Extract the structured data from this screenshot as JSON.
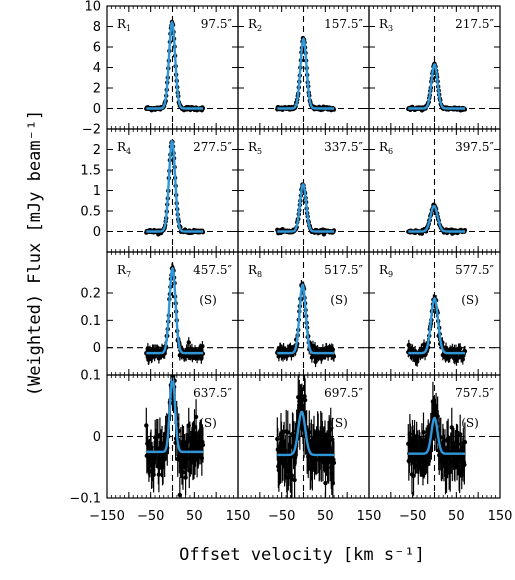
{
  "chart_data": {
    "type": "line",
    "grid": false,
    "xlabel": "Offset velocity [km s⁻¹]",
    "ylabel": "(Weighted) Flux [mJy beam⁻¹]",
    "xlim": [
      -150,
      150
    ],
    "x_ticks": [
      "−150",
      "−50",
      "50",
      "150"
    ],
    "x_tick_values": [
      -150,
      -50,
      50,
      150
    ],
    "colors": {
      "model": "#2f97d8",
      "data": "#000000",
      "frame": "#000000"
    },
    "rows": [
      {
        "ylim": [
          -2,
          10
        ],
        "y_ticks": [
          {
            "v": 10,
            "t": "10"
          },
          {
            "v": 8,
            "t": "8"
          },
          {
            "v": 6,
            "t": "6"
          },
          {
            "v": 4,
            "t": "4"
          },
          {
            "v": 2,
            "t": "2"
          },
          {
            "v": 0,
            "t": "0"
          },
          {
            "v": -2,
            "t": "−2"
          }
        ]
      },
      {
        "ylim": [
          -0.5,
          2.5
        ],
        "y_ticks": [
          {
            "v": 2,
            "t": "2"
          },
          {
            "v": 1.5,
            "t": "1.5"
          },
          {
            "v": 1,
            "t": "1"
          },
          {
            "v": 0.5,
            "t": "0.5"
          },
          {
            "v": 0,
            "t": "0"
          }
        ]
      },
      {
        "ylim": [
          -0.1,
          0.35
        ],
        "y_ticks": [
          {
            "v": 0.2,
            "t": "0.2"
          },
          {
            "v": 0.1,
            "t": "0.1"
          },
          {
            "v": 0,
            "t": "0"
          }
        ]
      },
      {
        "ylim": [
          -0.1,
          0.1
        ],
        "y_ticks": [
          {
            "v": 0.1,
            "t": "0.1"
          },
          {
            "v": 0,
            "t": "0"
          },
          {
            "v": -0.1,
            "t": "−0.1"
          }
        ]
      }
    ],
    "panels": [
      {
        "label": "R",
        "sub": "1",
        "offset": "97.5″",
        "flag": "",
        "amp": 8.4,
        "center": -1,
        "sigma": 7,
        "baseline": 0,
        "noise": 0.08,
        "xrange": [
          -60,
          70
        ]
      },
      {
        "label": "R",
        "sub": "2",
        "offset": "157.5″",
        "flag": "",
        "amp": 6.8,
        "center": 0,
        "sigma": 7,
        "baseline": 0,
        "noise": 0.08,
        "xrange": [
          -60,
          70
        ]
      },
      {
        "label": "R",
        "sub": "3",
        "offset": "217.5″",
        "flag": "",
        "amp": 4.3,
        "center": 0,
        "sigma": 7,
        "baseline": 0,
        "noise": 0.08,
        "xrange": [
          -60,
          70
        ]
      },
      {
        "label": "R",
        "sub": "4",
        "offset": "277.5″",
        "flag": "",
        "amp": 2.2,
        "center": -1,
        "sigma": 7,
        "baseline": 0,
        "noise": 0.02,
        "xrange": [
          -60,
          70
        ]
      },
      {
        "label": "R",
        "sub": "5",
        "offset": "337.5″",
        "flag": "",
        "amp": 1.15,
        "center": -1,
        "sigma": 7,
        "baseline": 0,
        "noise": 0.02,
        "xrange": [
          -60,
          70
        ]
      },
      {
        "label": "R",
        "sub": "6",
        "offset": "397.5″",
        "flag": "",
        "amp": 0.62,
        "center": -1,
        "sigma": 8,
        "baseline": 0,
        "noise": 0.02,
        "xrange": [
          -60,
          70
        ]
      },
      {
        "label": "R",
        "sub": "7",
        "offset": "457.5″",
        "flag": "(S)",
        "amp": 0.31,
        "center": 0,
        "sigma": 7,
        "baseline": -0.02,
        "noise": 0.012,
        "xrange": [
          -60,
          70
        ]
      },
      {
        "label": "R",
        "sub": "8",
        "offset": "517.5″",
        "flag": "(S)",
        "amp": 0.25,
        "center": -2,
        "sigma": 7,
        "baseline": -0.02,
        "noise": 0.012,
        "xrange": [
          -60,
          70
        ]
      },
      {
        "label": "R",
        "sub": "9",
        "offset": "577.5″",
        "flag": "(S)",
        "amp": 0.2,
        "center": 0,
        "sigma": 8,
        "baseline": -0.02,
        "noise": 0.012,
        "xrange": [
          -60,
          70
        ]
      },
      {
        "label": "",
        "sub": "",
        "offset": "637.5″",
        "flag": "(S)",
        "amp": 0.12,
        "center": 0,
        "sigma": 6,
        "baseline": -0.025,
        "noise": 0.018,
        "xrange": [
          -60,
          70
        ]
      },
      {
        "label": "",
        "sub": "",
        "offset": "697.5″",
        "flag": "(S)",
        "amp": 0.07,
        "center": -4,
        "sigma": 8,
        "baseline": -0.03,
        "noise": 0.022,
        "xrange": [
          -60,
          70
        ]
      },
      {
        "label": "",
        "sub": "",
        "offset": "757.5″",
        "flag": "(S)",
        "amp": 0.058,
        "center": 0,
        "sigma": 7,
        "baseline": -0.028,
        "noise": 0.02,
        "xrange": [
          -60,
          70
        ]
      }
    ]
  }
}
